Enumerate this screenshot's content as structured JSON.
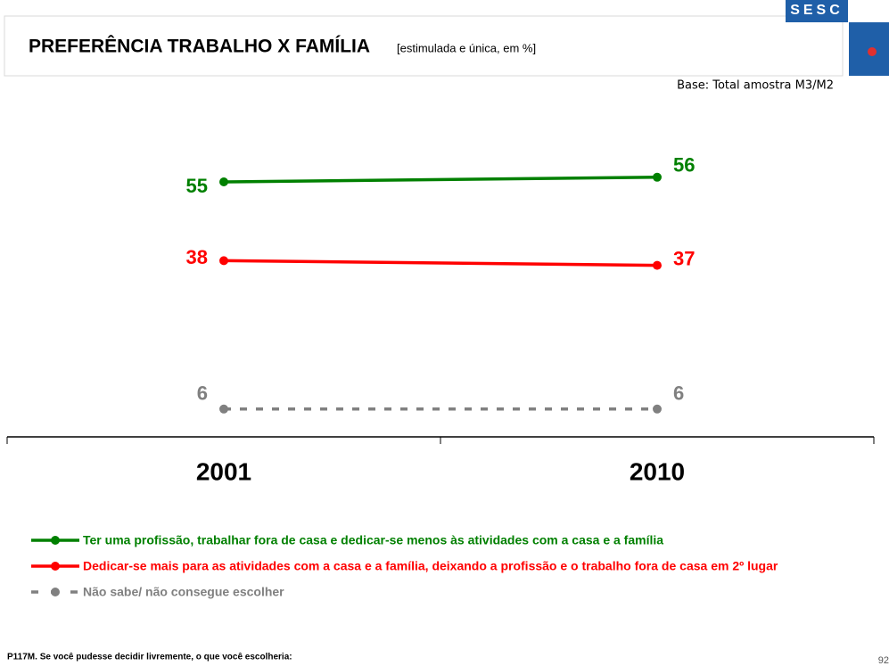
{
  "header": {
    "title": "PREFERÊNCIA TRABALHO X FAMÍLIA",
    "subtitle": "[estimulada e única, em %]",
    "logo": "SESC",
    "base": "Base: Total amostra M3/M2"
  },
  "chart_data": {
    "type": "line",
    "categories": [
      "2001",
      "2010"
    ],
    "ylim": [
      0,
      75
    ],
    "series": [
      {
        "name": "Ter uma profissão, trabalhar fora de casa e dedicar-se menos às atividades com a casa e a família",
        "color": "#008000",
        "values": [
          55,
          56
        ],
        "dashed": false
      },
      {
        "name": "Dedicar-se mais para as atividades com a casa e a família, deixando a profissão e o trabalho fora de casa em 2º lugar",
        "color": "#ff0000",
        "values": [
          38,
          37
        ],
        "dashed": false
      },
      {
        "name": "Não sabe/ não consegue escolher",
        "color": "#808080",
        "values": [
          6,
          6
        ],
        "dashed": true
      }
    ]
  },
  "footer": {
    "question": "P117M. Se você pudesse decidir livremente, o que você escolheria:",
    "page": "92"
  }
}
